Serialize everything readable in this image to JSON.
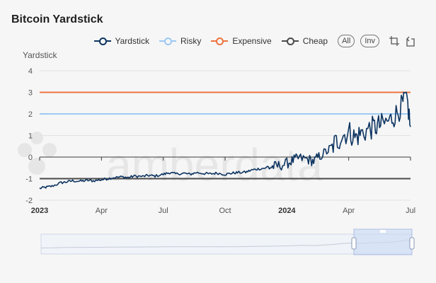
{
  "title": "Bitcoin Yardstick",
  "yaxis_label": "Yardstick",
  "legend": [
    {
      "key": "yardstick",
      "label": "Yardstick",
      "color": "#0d3461"
    },
    {
      "key": "risky",
      "label": "Risky",
      "color": "#9cc9f5"
    },
    {
      "key": "expensive",
      "label": "Expensive",
      "color": "#ee7440"
    },
    {
      "key": "cheap",
      "label": "Cheap",
      "color": "#4a4a4a"
    }
  ],
  "buttons": {
    "all": "All",
    "inv": "Inv"
  },
  "watermark": "amberdata",
  "chart_data": {
    "type": "line",
    "title": "Bitcoin Yardstick",
    "ylabel": "Yardstick",
    "ylim": [
      -2,
      4
    ],
    "yticks": [
      "4",
      "3",
      "2",
      "1",
      "0",
      "-1",
      "-2"
    ],
    "xticks": [
      {
        "label": "2023",
        "bold": true,
        "month": 0
      },
      {
        "label": "Apr",
        "bold": false,
        "month": 3
      },
      {
        "label": "Jul",
        "bold": false,
        "month": 6
      },
      {
        "label": "Oct",
        "bold": false,
        "month": 9
      },
      {
        "label": "2024",
        "bold": true,
        "month": 12
      },
      {
        "label": "Apr",
        "bold": false,
        "month": 15
      },
      {
        "label": "Jul",
        "bold": false,
        "month": 18
      }
    ],
    "xrange_months": [
      0,
      18
    ],
    "thresholds": [
      {
        "name": "Expensive",
        "value": 3,
        "color": "#ee7440"
      },
      {
        "name": "Risky",
        "value": 2,
        "color": "#9cc9f5"
      },
      {
        "name": "Cheap",
        "value": -1,
        "color": "#4a4a4a"
      }
    ],
    "series": [
      {
        "name": "Yardstick",
        "color": "#0d3461",
        "points": [
          [
            0.0,
            -1.45
          ],
          [
            0.3,
            -1.4
          ],
          [
            0.6,
            -1.35
          ],
          [
            1.0,
            -1.2
          ],
          [
            1.3,
            -1.15
          ],
          [
            1.6,
            -1.1
          ],
          [
            2.0,
            -1.12
          ],
          [
            2.3,
            -1.08
          ],
          [
            2.6,
            -1.1
          ],
          [
            3.0,
            -1.05
          ],
          [
            3.3,
            -1.0
          ],
          [
            3.6,
            -0.95
          ],
          [
            4.0,
            -0.92
          ],
          [
            4.3,
            -0.95
          ],
          [
            4.6,
            -0.88
          ],
          [
            5.0,
            -0.9
          ],
          [
            5.3,
            -0.85
          ],
          [
            5.6,
            -0.88
          ],
          [
            6.0,
            -0.8
          ],
          [
            6.3,
            -0.72
          ],
          [
            6.6,
            -0.78
          ],
          [
            7.0,
            -0.75
          ],
          [
            7.3,
            -0.8
          ],
          [
            7.6,
            -0.72
          ],
          [
            8.0,
            -0.76
          ],
          [
            8.3,
            -0.78
          ],
          [
            8.6,
            -0.74
          ],
          [
            9.0,
            -0.8
          ],
          [
            9.3,
            -0.75
          ],
          [
            9.6,
            -0.72
          ],
          [
            10.0,
            -0.7
          ],
          [
            10.3,
            -0.6
          ],
          [
            10.6,
            -0.55
          ],
          [
            11.0,
            -0.5
          ],
          [
            11.3,
            -0.45
          ],
          [
            11.6,
            -0.4
          ],
          [
            12.0,
            -0.3
          ],
          [
            12.3,
            -0.15
          ],
          [
            12.6,
            -0.05
          ],
          [
            13.0,
            -0.1
          ],
          [
            13.3,
            -0.2
          ],
          [
            13.6,
            0.05
          ],
          [
            14.0,
            0.3
          ],
          [
            14.3,
            0.6
          ],
          [
            14.6,
            0.9
          ],
          [
            15.0,
            1.2
          ],
          [
            15.3,
            0.9
          ],
          [
            15.6,
            1.1
          ],
          [
            16.0,
            1.3
          ],
          [
            16.3,
            1.4
          ],
          [
            16.6,
            1.5
          ],
          [
            17.0,
            1.7
          ],
          [
            17.3,
            2.0
          ],
          [
            17.6,
            2.4
          ],
          [
            17.8,
            2.9
          ],
          [
            18.0,
            1.4
          ]
        ]
      }
    ]
  }
}
